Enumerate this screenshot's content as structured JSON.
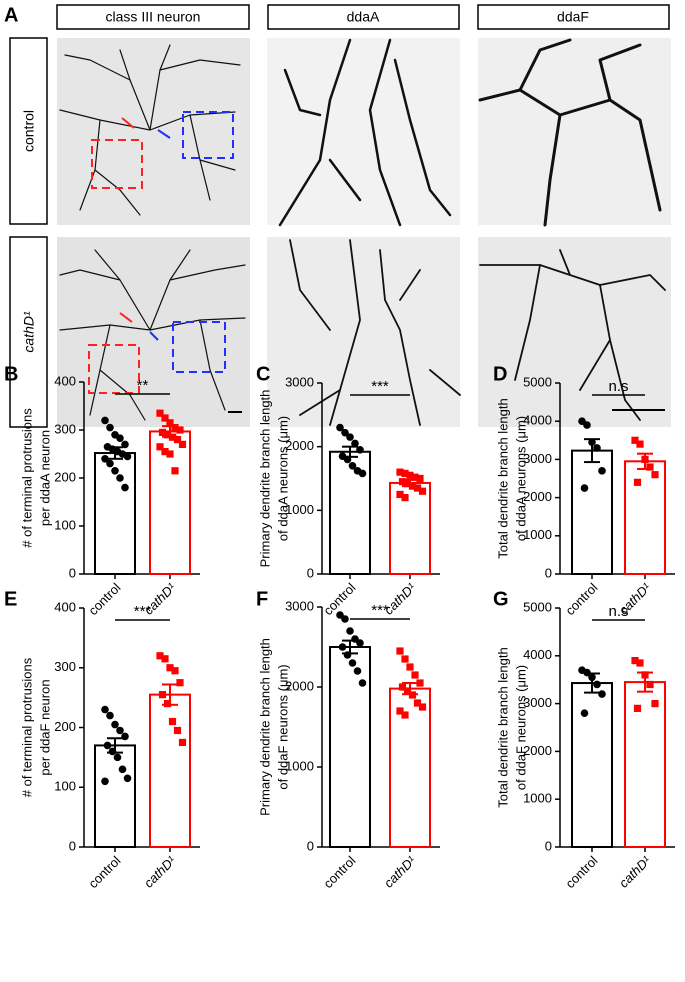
{
  "panel_a": {
    "label": "A",
    "columns": [
      "class III neuron",
      "ddaA",
      "ddaF"
    ],
    "rows": [
      "control",
      "cathD¹"
    ]
  },
  "chart_data": [
    {
      "type": "bar",
      "label": "B",
      "y_label": [
        "# of terminal protrusions",
        "per ddaA neuron"
      ],
      "categories": [
        "control",
        "cathD¹"
      ],
      "ylim": [
        0,
        400
      ],
      "yticks": [
        0,
        100,
        200,
        300,
        400
      ],
      "significance": "**",
      "series": [
        {
          "color": "#000000",
          "value": 252,
          "error": 12,
          "points": [
            320,
            305,
            290,
            283,
            270,
            265,
            260,
            255,
            250,
            245,
            240,
            230,
            215,
            200,
            180
          ]
        },
        {
          "color": "#ff0000",
          "value": 297,
          "error": 11,
          "points": [
            335,
            325,
            315,
            305,
            300,
            295,
            290,
            285,
            280,
            270,
            265,
            255,
            250,
            215
          ]
        }
      ]
    },
    {
      "type": "bar",
      "label": "C",
      "y_label": [
        "Primary dendrite branch length",
        "of ddaA neurons (μm)"
      ],
      "categories": [
        "control",
        "cathD¹"
      ],
      "ylim": [
        0,
        3000
      ],
      "yticks": [
        0,
        1000,
        2000,
        3000
      ],
      "significance": "***",
      "series": [
        {
          "color": "#000000",
          "value": 1920,
          "error": 80,
          "points": [
            2300,
            2220,
            2150,
            2050,
            1950,
            1850,
            1800,
            1700,
            1620,
            1580
          ]
        },
        {
          "color": "#ff0000",
          "value": 1430,
          "error": 50,
          "points": [
            1600,
            1580,
            1550,
            1520,
            1500,
            1450,
            1420,
            1380,
            1350,
            1300,
            1250,
            1200
          ]
        }
      ]
    },
    {
      "type": "bar",
      "label": "D",
      "y_label": [
        "Total dendrite branch length",
        "of ddaA neurons (μm)"
      ],
      "categories": [
        "control",
        "cathD¹"
      ],
      "ylim": [
        0,
        5000
      ],
      "yticks": [
        0,
        1000,
        2000,
        3000,
        4000,
        5000
      ],
      "significance": "n.s",
      "series": [
        {
          "color": "#000000",
          "value": 3230,
          "error": 300,
          "points": [
            4000,
            3900,
            3450,
            3300,
            2700,
            2250
          ]
        },
        {
          "color": "#ff0000",
          "value": 2950,
          "error": 200,
          "points": [
            3500,
            3400,
            3000,
            2800,
            2600,
            2400
          ]
        }
      ]
    },
    {
      "type": "bar",
      "label": "E",
      "y_label": [
        "# of terminal protrusions",
        "per ddaF neuron"
      ],
      "categories": [
        "control",
        "cathD¹"
      ],
      "ylim": [
        0,
        400
      ],
      "yticks": [
        0,
        100,
        200,
        300,
        400
      ],
      "significance": "***",
      "series": [
        {
          "color": "#000000",
          "value": 170,
          "error": 12,
          "points": [
            230,
            220,
            205,
            195,
            185,
            170,
            160,
            150,
            130,
            115,
            110
          ]
        },
        {
          "color": "#ff0000",
          "value": 255,
          "error": 17,
          "points": [
            320,
            315,
            300,
            295,
            275,
            255,
            240,
            210,
            195,
            175
          ]
        }
      ]
    },
    {
      "type": "bar",
      "label": "F",
      "y_label": [
        "Primary dendrite branch length",
        "of ddaF neurons (μm)"
      ],
      "categories": [
        "control",
        "cathD¹"
      ],
      "ylim": [
        0,
        3000
      ],
      "yticks": [
        0,
        1000,
        2000,
        3000
      ],
      "significance": "***",
      "series": [
        {
          "color": "#000000",
          "value": 2500,
          "error": 80,
          "points": [
            2900,
            2850,
            2700,
            2600,
            2550,
            2500,
            2400,
            2300,
            2200,
            2050
          ]
        },
        {
          "color": "#ff0000",
          "value": 1980,
          "error": 70,
          "points": [
            2450,
            2350,
            2250,
            2150,
            2050,
            2000,
            1950,
            1900,
            1800,
            1750,
            1700,
            1650
          ]
        }
      ]
    },
    {
      "type": "bar",
      "label": "G",
      "y_label": [
        "Total dendrite branch length",
        "of ddaF neurons (μm)"
      ],
      "categories": [
        "control",
        "cathD¹"
      ],
      "ylim": [
        0,
        5000
      ],
      "yticks": [
        0,
        1000,
        2000,
        3000,
        4000,
        5000
      ],
      "significance": "n.s",
      "series": [
        {
          "color": "#000000",
          "value": 3430,
          "error": 200,
          "points": [
            3700,
            3650,
            3550,
            3400,
            3200,
            2800
          ]
        },
        {
          "color": "#ff0000",
          "value": 3450,
          "error": 200,
          "points": [
            3900,
            3850,
            3600,
            3400,
            3000,
            2900
          ]
        }
      ]
    }
  ]
}
